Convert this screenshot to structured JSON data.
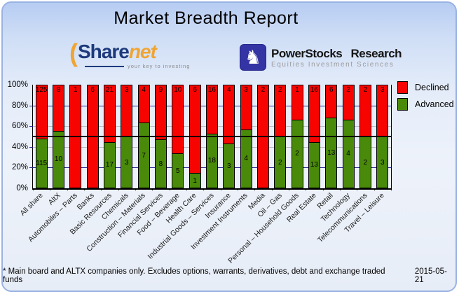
{
  "title": "Market Breadth Report",
  "logos": {
    "sharenet": {
      "text_main": "Share",
      "text_accent": "net",
      "tagline": "your key to investing",
      "brand_blue": "#1d3a7c",
      "brand_orange": "#f0a432"
    },
    "powerstocks": {
      "icon": "knight-icon",
      "name": "PowerStocks  Research",
      "tagline": "Equities Investment Sciences",
      "brand_blue": "#3434a4"
    }
  },
  "chart_data": {
    "type": "bar",
    "stacked": true,
    "title": "",
    "xlabel": "",
    "ylabel": "",
    "ylim": [
      0,
      100
    ],
    "y_ticks": [
      "0%",
      "20%",
      "40%",
      "60%",
      "80%",
      "100%"
    ],
    "grid": "on",
    "legend_position": "top-right",
    "midline_percent": 50,
    "categories": [
      "All share",
      "AltX",
      "Automobiles – Parts",
      "Banks",
      "Basic Resources",
      "Chemicals",
      "Construction – Materials",
      "Financial Services",
      "Food – Beverage",
      "Health Care",
      "Industrial Goods – Services",
      "Insurance",
      "Investment Instruments",
      "Media",
      "Oil – Gas",
      "Personal – Household Goods",
      "Real Estate",
      "Retail",
      "Technology",
      "Telecommunications",
      "Travel – Leisure"
    ],
    "series": [
      {
        "name": "Declined",
        "color": "#f80400",
        "values": [
          125,
          8,
          1,
          6,
          21,
          3,
          4,
          9,
          10,
          6,
          16,
          4,
          3,
          2,
          2,
          1,
          16,
          6,
          2,
          2,
          3
        ]
      },
      {
        "name": "Advanced",
        "color": "#4a8a0a",
        "values": [
          115,
          10,
          0,
          0,
          17,
          3,
          7,
          8,
          5,
          1,
          18,
          3,
          4,
          0,
          2,
          2,
          13,
          13,
          4,
          2,
          3
        ]
      }
    ],
    "legend": [
      {
        "label": "Declined",
        "color": "#f80400"
      },
      {
        "label": "Advanced",
        "color": "#4a8a0a"
      }
    ],
    "gridline_colors": {
      "20": "#24248f",
      "40": "#b9b9b9",
      "60": "#b9b9b9",
      "80": "#24248f"
    }
  },
  "footer": {
    "note": "* Main board and ALTX companies only. Excludes options, warrants, derivatives, debt and exchange traded funds",
    "date": "2015-05-21"
  }
}
